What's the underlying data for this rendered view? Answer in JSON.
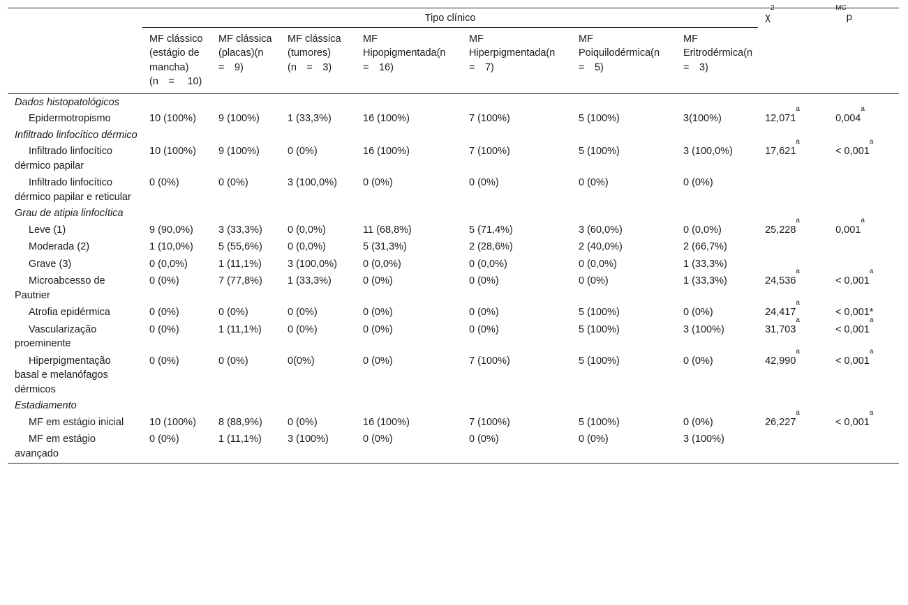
{
  "header": {
    "group_title": "Tipo clínico",
    "chi_label": "χ",
    "chi_sup": "2",
    "p_sup": "MC",
    "p_label": "p",
    "columns": [
      "MF clássico (estágio de mancha)(n =  10)",
      "MF clássica (placas)(n = 9)",
      "MF clássica (tumores)(n = 3)",
      "MF Hipopigmentada(n = 16)",
      "MF Hiperpigmentada(n = 7)",
      "MF Poiquilodérmica(n = 5)",
      "MF Eritrodérmica(n = 3)"
    ]
  },
  "sections": [
    {
      "title": "Dados histopatológicos",
      "rows": [
        {
          "label": "Epidermotropismo",
          "values": [
            "10 (100%)",
            "9 (100%)",
            "1 (33,3%)",
            "16 (100%)",
            "7 (100%)",
            "5 (100%)",
            "3(100%)"
          ],
          "chi": "12,071",
          "chi_sup": "a",
          "p": "0,004",
          "p_sup": "a"
        }
      ]
    },
    {
      "title": "Infiltrado linfocítico dérmico",
      "rows": [
        {
          "label": "Infiltrado linfocítico dérmico papilar",
          "values": [
            "10 (100%)",
            "9 (100%)",
            "0 (0%)",
            "16 (100%)",
            "7 (100%)",
            "5 (100%)",
            "3 (100,0%)"
          ],
          "chi": "17,621",
          "chi_sup": "a",
          "p": "< 0,001",
          "p_sup": "a"
        },
        {
          "label": "Infiltrado linfocítico dérmico papilar e reticular",
          "values": [
            "0 (0%)",
            "0 (0%)",
            "3 (100,0%)",
            "0 (0%)",
            "0 (0%)",
            "0 (0%)",
            "0 (0%)"
          ],
          "chi": "",
          "chi_sup": "",
          "p": "",
          "p_sup": ""
        }
      ]
    },
    {
      "title": "Grau de atipia linfocítica",
      "rows": [
        {
          "label": "Leve (1)",
          "values": [
            "9 (90,0%)",
            "3 (33,3%)",
            "0 (0,0%)",
            "11 (68,8%)",
            "5 (71,4%)",
            "3 (60,0%)",
            "0 (0,0%)"
          ],
          "chi": "25,228",
          "chi_sup": "a",
          "p": "0,001",
          "p_sup": "a"
        },
        {
          "label": "Moderada (2)",
          "values": [
            "1 (10,0%)",
            "5 (55,6%)",
            "0 (0,0%)",
            "5 (31,3%)",
            "2 (28,6%)",
            "2 (40,0%)",
            "2 (66,7%)"
          ],
          "chi": "",
          "chi_sup": "",
          "p": "",
          "p_sup": ""
        },
        {
          "label": "Grave (3)",
          "values": [
            "0 (0,0%)",
            "1 (11,1%)",
            "3 (100,0%)",
            "0 (0,0%)",
            "0 (0,0%)",
            "0 (0,0%)",
            "1 (33,3%)"
          ],
          "chi": "",
          "chi_sup": "",
          "p": "",
          "p_sup": ""
        },
        {
          "label": "Microabcesso de Pautrier",
          "values": [
            "0 (0%)",
            "7 (77,8%)",
            "1 (33,3%)",
            "0 (0%)",
            "0 (0%)",
            "0 (0%)",
            "1 (33,3%)"
          ],
          "chi": "24,536",
          "chi_sup": "a",
          "p": "< 0,001",
          "p_sup": "a"
        },
        {
          "label": "Atrofia epidérmica",
          "values": [
            "0 (0%)",
            "0 (0%)",
            "0 (0%)",
            "0 (0%)",
            "0 (0%)",
            "5 (100%)",
            "0 (0%)"
          ],
          "chi": "24,417",
          "chi_sup": "a",
          "p": "< 0,001*",
          "p_sup": ""
        },
        {
          "label": "Vascularização proeminente",
          "values": [
            "0 (0%)",
            "1 (11,1%)",
            "0 (0%)",
            "0 (0%)",
            "0 (0%)",
            "5 (100%)",
            "3 (100%)"
          ],
          "chi": "31,703",
          "chi_sup": "a",
          "p": "< 0,001",
          "p_sup": "a"
        },
        {
          "label": "Hiperpigmentação basal e melanófagos dérmicos",
          "values": [
            "0 (0%)",
            "0 (0%)",
            "0(0%)",
            "0 (0%)",
            "7 (100%)",
            "5 (100%)",
            "0 (0%)"
          ],
          "chi": "42,990",
          "chi_sup": "a",
          "p": "< 0,001",
          "p_sup": "a"
        }
      ]
    },
    {
      "title": "Estadiamento",
      "rows": [
        {
          "label": "MF em estágio inicial",
          "values": [
            "10 (100%)",
            "8 (88,9%)",
            "0 (0%)",
            "16 (100%)",
            "7 (100%)",
            "5 (100%)",
            "0 (0%)"
          ],
          "chi": "26,227",
          "chi_sup": "a",
          "p": "< 0,001",
          "p_sup": "a"
        },
        {
          "label": "MF em estágio avançado",
          "values": [
            "0 (0%)",
            "1 (11,1%)",
            "3 (100%)",
            "0 (0%)",
            "0 (0%)",
            "0 (0%)",
            "3 (100%)"
          ],
          "chi": "",
          "chi_sup": "",
          "p": "",
          "p_sup": ""
        }
      ]
    }
  ]
}
